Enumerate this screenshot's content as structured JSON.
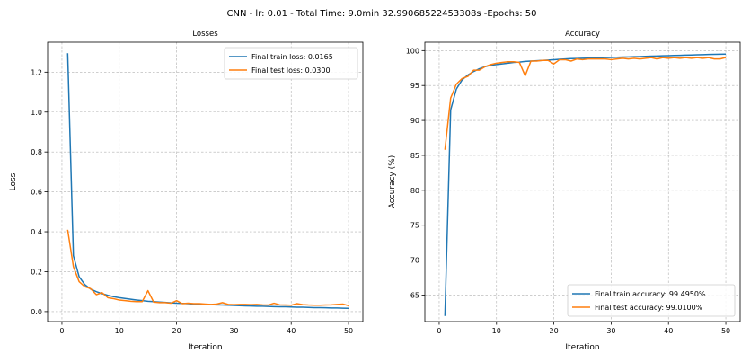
{
  "figure": {
    "suptitle": "CNN - lr: 0.01 - Total Time: 9.0min 32.99068522453308s -Epochs: 50"
  },
  "colors": {
    "train": "#1f77b4",
    "test": "#ff7f0e",
    "grid": "#b0b0b0"
  },
  "chart_data": [
    {
      "type": "line",
      "title": "Losses",
      "xlabel": "Iteration",
      "ylabel": "Loss",
      "xlim": [
        -2.5,
        52.5
      ],
      "ylim": [
        -0.05,
        1.35
      ],
      "xticks": [
        0,
        10,
        20,
        30,
        40,
        50
      ],
      "xtick_labels": [
        "0",
        "10",
        "20",
        "30",
        "40",
        "50"
      ],
      "yticks": [
        0.0,
        0.2,
        0.4,
        0.6,
        0.8,
        1.0,
        1.2
      ],
      "ytick_labels": [
        "0.0",
        "0.2",
        "0.4",
        "0.6",
        "0.8",
        "1.0",
        "1.2"
      ],
      "grid": true,
      "legend_position": "upper right",
      "x": [
        1,
        2,
        3,
        4,
        5,
        6,
        7,
        8,
        9,
        10,
        11,
        12,
        13,
        14,
        15,
        16,
        17,
        18,
        19,
        20,
        21,
        22,
        23,
        24,
        25,
        26,
        27,
        28,
        29,
        30,
        31,
        32,
        33,
        34,
        35,
        36,
        37,
        38,
        39,
        40,
        41,
        42,
        43,
        44,
        45,
        46,
        47,
        48,
        49,
        50
      ],
      "series": [
        {
          "name": "Final train loss: 0.0165",
          "color": "#1f77b4",
          "values": [
            1.295,
            0.28,
            0.175,
            0.135,
            0.113,
            0.1,
            0.09,
            0.082,
            0.075,
            0.07,
            0.066,
            0.062,
            0.058,
            0.055,
            0.052,
            0.05,
            0.048,
            0.046,
            0.044,
            0.042,
            0.041,
            0.04,
            0.038,
            0.037,
            0.036,
            0.035,
            0.034,
            0.033,
            0.032,
            0.031,
            0.03,
            0.029,
            0.028,
            0.027,
            0.027,
            0.026,
            0.025,
            0.024,
            0.024,
            0.023,
            0.022,
            0.022,
            0.021,
            0.02,
            0.02,
            0.019,
            0.018,
            0.018,
            0.017,
            0.0165
          ]
        },
        {
          "name": "Final test loss: 0.0300",
          "color": "#ff7f0e",
          "values": [
            0.41,
            0.225,
            0.15,
            0.125,
            0.115,
            0.085,
            0.095,
            0.07,
            0.065,
            0.058,
            0.055,
            0.052,
            0.05,
            0.05,
            0.105,
            0.048,
            0.045,
            0.045,
            0.042,
            0.055,
            0.04,
            0.042,
            0.04,
            0.04,
            0.038,
            0.036,
            0.038,
            0.045,
            0.036,
            0.035,
            0.036,
            0.036,
            0.035,
            0.036,
            0.034,
            0.033,
            0.042,
            0.034,
            0.033,
            0.032,
            0.04,
            0.035,
            0.033,
            0.032,
            0.032,
            0.033,
            0.034,
            0.036,
            0.038,
            0.03
          ]
        }
      ]
    },
    {
      "type": "line",
      "title": "Accuracy",
      "xlabel": "Iteration",
      "ylabel": "Accuracy (%)",
      "xlim": [
        -2.5,
        52.5
      ],
      "ylim": [
        61.2,
        101.2
      ],
      "xticks": [
        0,
        10,
        20,
        30,
        40,
        50
      ],
      "xtick_labels": [
        "0",
        "10",
        "20",
        "30",
        "40",
        "50"
      ],
      "yticks": [
        65,
        70,
        75,
        80,
        85,
        90,
        95,
        100
      ],
      "ytick_labels": [
        "65",
        "70",
        "75",
        "80",
        "85",
        "90",
        "95",
        "100"
      ],
      "grid": true,
      "legend_position": "lower right",
      "x": [
        1,
        2,
        3,
        4,
        5,
        6,
        7,
        8,
        9,
        10,
        11,
        12,
        13,
        14,
        15,
        16,
        17,
        18,
        19,
        20,
        21,
        22,
        23,
        24,
        25,
        26,
        27,
        28,
        29,
        30,
        31,
        32,
        33,
        34,
        35,
        36,
        37,
        38,
        39,
        40,
        41,
        42,
        43,
        44,
        45,
        46,
        47,
        48,
        49,
        50
      ],
      "series": [
        {
          "name": "Final train accuracy: 99.4950%",
          "color": "#1f77b4",
          "values": [
            62.0,
            91.5,
            94.5,
            95.8,
            96.5,
            97.0,
            97.4,
            97.7,
            97.9,
            98.0,
            98.1,
            98.2,
            98.3,
            98.35,
            98.45,
            98.5,
            98.55,
            98.6,
            98.65,
            98.7,
            98.75,
            98.8,
            98.85,
            98.87,
            98.9,
            98.92,
            98.95,
            98.97,
            99.0,
            99.02,
            99.05,
            99.07,
            99.1,
            99.12,
            99.15,
            99.17,
            99.2,
            99.22,
            99.25,
            99.27,
            99.3,
            99.32,
            99.35,
            99.37,
            99.4,
            99.42,
            99.45,
            99.47,
            99.48,
            99.495
          ]
        },
        {
          "name": "Final test accuracy: 99.0100%",
          "color": "#ff7f0e",
          "values": [
            85.8,
            93.2,
            95.2,
            96.0,
            96.3,
            97.2,
            97.2,
            97.7,
            98.0,
            98.2,
            98.3,
            98.4,
            98.4,
            98.3,
            96.4,
            98.5,
            98.5,
            98.6,
            98.6,
            98.1,
            98.7,
            98.7,
            98.5,
            98.8,
            98.7,
            98.8,
            98.8,
            98.8,
            98.8,
            98.7,
            98.8,
            98.9,
            98.8,
            98.9,
            98.8,
            98.9,
            99.0,
            98.8,
            99.0,
            98.9,
            99.0,
            98.9,
            99.0,
            98.9,
            99.0,
            98.9,
            99.0,
            98.8,
            98.8,
            99.01
          ]
        }
      ]
    }
  ]
}
